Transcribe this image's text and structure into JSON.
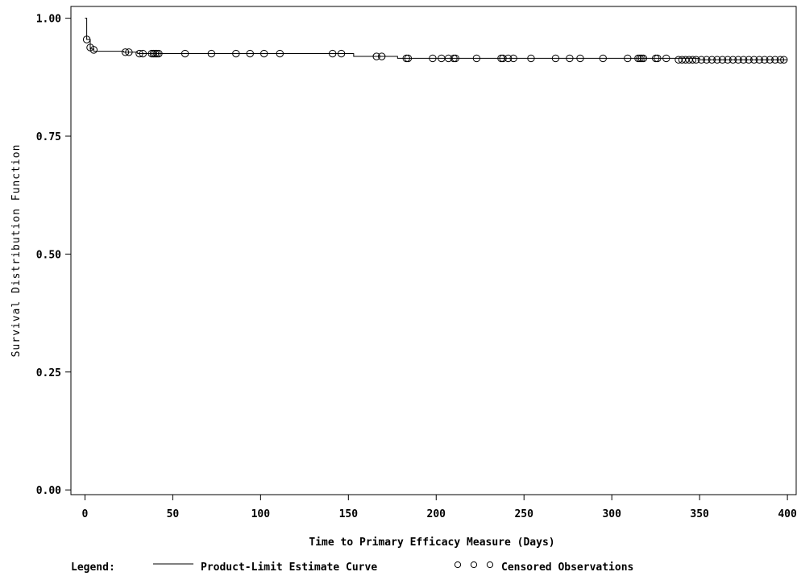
{
  "chart_data": {
    "type": "line",
    "xlabel": "Time to Primary Efficacy Measure (Days)",
    "ylabel": "Survival Distribution Function",
    "xlim": [
      -8,
      405
    ],
    "ylim": [
      -0.01,
      1.025
    ],
    "x_ticks": [
      0,
      50,
      100,
      150,
      200,
      250,
      300,
      350,
      400
    ],
    "x_tick_labels": [
      "0",
      "50",
      "100",
      "150",
      "200",
      "250",
      "300",
      "350",
      "400"
    ],
    "y_ticks": [
      0,
      0.25,
      0.5,
      0.75,
      1.0
    ],
    "y_tick_labels": [
      "0.00",
      "0.25",
      "0.50",
      "0.75",
      "1.00"
    ],
    "grid": false,
    "series": [
      {
        "name": "Product-Limit Estimate Curve",
        "step": [
          [
            0,
            1.0
          ],
          [
            1,
            1.0
          ],
          [
            1,
            0.955
          ],
          [
            3,
            0.955
          ],
          [
            3,
            0.935
          ],
          [
            5,
            0.935
          ],
          [
            5,
            0.93
          ],
          [
            22,
            0.93
          ],
          [
            22,
            0.928
          ],
          [
            30,
            0.928
          ],
          [
            30,
            0.925
          ],
          [
            153,
            0.925
          ],
          [
            153,
            0.919
          ],
          [
            178,
            0.919
          ],
          [
            178,
            0.915
          ],
          [
            350,
            0.915
          ],
          [
            350,
            0.912
          ],
          [
            400,
            0.912
          ]
        ]
      },
      {
        "name": "Censored Observations",
        "censored": [
          [
            1,
            0.955
          ],
          [
            3,
            0.938
          ],
          [
            5,
            0.933
          ],
          [
            23,
            0.928
          ],
          [
            25,
            0.928
          ],
          [
            31,
            0.925
          ],
          [
            33,
            0.925
          ],
          [
            38,
            0.925
          ],
          [
            39,
            0.925
          ],
          [
            40,
            0.925
          ],
          [
            41,
            0.925
          ],
          [
            42,
            0.925
          ],
          [
            57,
            0.925
          ],
          [
            72,
            0.925
          ],
          [
            86,
            0.925
          ],
          [
            94,
            0.925
          ],
          [
            102,
            0.925
          ],
          [
            111,
            0.925
          ],
          [
            141,
            0.925
          ],
          [
            146,
            0.925
          ],
          [
            166,
            0.919
          ],
          [
            169,
            0.919
          ],
          [
            183,
            0.915
          ],
          [
            184,
            0.915
          ],
          [
            198,
            0.915
          ],
          [
            203,
            0.915
          ],
          [
            207,
            0.915
          ],
          [
            210,
            0.915
          ],
          [
            211,
            0.915
          ],
          [
            223,
            0.915
          ],
          [
            237,
            0.915
          ],
          [
            238,
            0.915
          ],
          [
            241,
            0.915
          ],
          [
            244,
            0.915
          ],
          [
            254,
            0.915
          ],
          [
            268,
            0.915
          ],
          [
            276,
            0.915
          ],
          [
            282,
            0.915
          ],
          [
            295,
            0.915
          ],
          [
            309,
            0.915
          ],
          [
            315,
            0.915
          ],
          [
            316,
            0.915
          ],
          [
            317,
            0.915
          ],
          [
            318,
            0.915
          ],
          [
            325,
            0.915
          ],
          [
            326,
            0.915
          ],
          [
            331,
            0.915
          ],
          [
            338,
            0.912
          ],
          [
            340,
            0.912
          ],
          [
            342,
            0.912
          ],
          [
            344,
            0.912
          ],
          [
            346,
            0.912
          ],
          [
            348,
            0.912
          ],
          [
            351,
            0.912
          ],
          [
            354,
            0.912
          ],
          [
            357,
            0.912
          ],
          [
            360,
            0.912
          ],
          [
            363,
            0.912
          ],
          [
            366,
            0.912
          ],
          [
            369,
            0.912
          ],
          [
            372,
            0.912
          ],
          [
            375,
            0.912
          ],
          [
            378,
            0.912
          ],
          [
            381,
            0.912
          ],
          [
            384,
            0.912
          ],
          [
            387,
            0.912
          ],
          [
            390,
            0.912
          ],
          [
            393,
            0.912
          ],
          [
            396,
            0.912
          ],
          [
            398,
            0.912
          ]
        ]
      }
    ],
    "legend": {
      "position": "bottom",
      "title": "Legend:",
      "curve_label": "Product-Limit Estimate Curve",
      "censored_label": "Censored Observations"
    }
  }
}
